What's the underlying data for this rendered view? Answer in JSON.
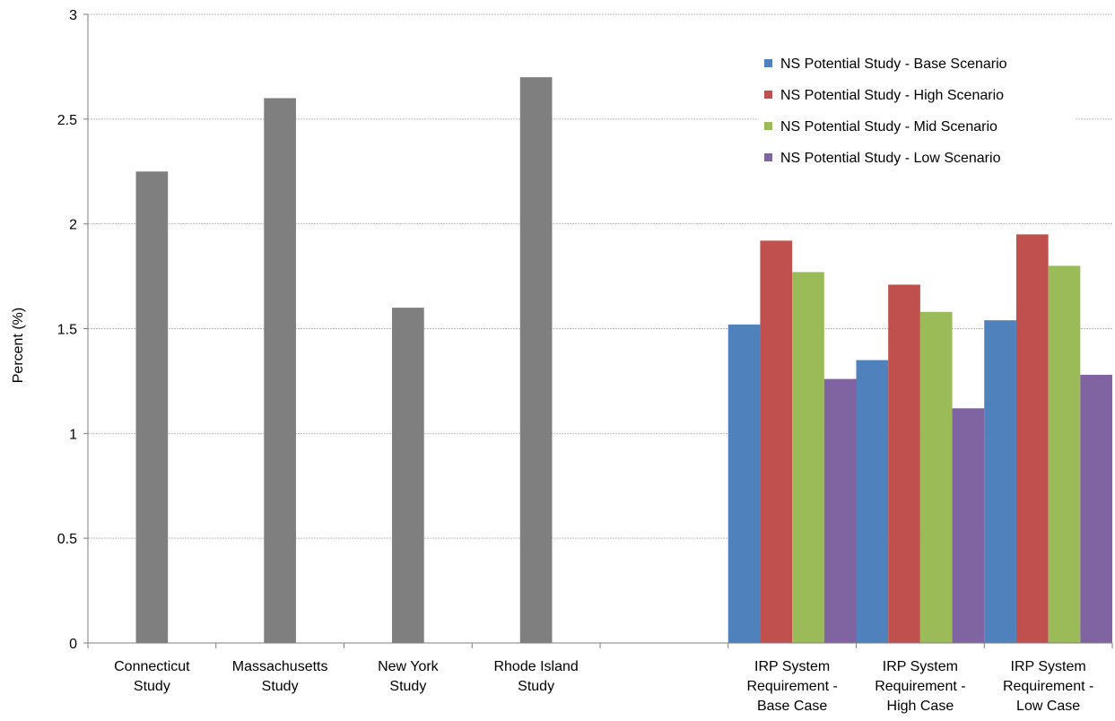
{
  "chart_data": {
    "type": "bar",
    "title": "",
    "xlabel": "",
    "ylabel": "Percent (%)",
    "ylim": [
      0,
      3
    ],
    "yticks": [
      "0",
      "0.5",
      "1",
      "1.5",
      "2",
      "2.5",
      "3"
    ],
    "grid": true,
    "legend_placement": "top-right",
    "categories": [
      [
        "Connecticut",
        "Study"
      ],
      [
        "Massachusetts",
        "Study"
      ],
      [
        "New York",
        "Study"
      ],
      [
        "Rhode Island",
        "Study"
      ],
      [
        ""
      ],
      [
        "IRP System",
        "Requirement -",
        "Base Case"
      ],
      [
        "IRP System",
        "Requirement -",
        "High Case"
      ],
      [
        "IRP System",
        "Requirement -",
        "Low Case"
      ]
    ],
    "single_bars": {
      "color": "#7f7f7f",
      "values": [
        2.25,
        2.6,
        1.6,
        2.7,
        null,
        null,
        null,
        null
      ]
    },
    "series": [
      {
        "name": "NS Potential Study - Base Scenario",
        "color": "#4f81bd",
        "values": [
          null,
          null,
          null,
          null,
          null,
          1.52,
          1.35,
          1.54
        ]
      },
      {
        "name": "NS Potential Study - High Scenario",
        "color": "#c0504d",
        "values": [
          null,
          null,
          null,
          null,
          null,
          1.92,
          1.71,
          1.95
        ]
      },
      {
        "name": "NS Potential Study - Mid Scenario",
        "color": "#9bbb59",
        "values": [
          null,
          null,
          null,
          null,
          null,
          1.77,
          1.58,
          1.8
        ]
      },
      {
        "name": "NS Potential Study - Low Scenario",
        "color": "#8064a2",
        "values": [
          null,
          null,
          null,
          null,
          null,
          1.26,
          1.12,
          1.28
        ]
      }
    ]
  }
}
